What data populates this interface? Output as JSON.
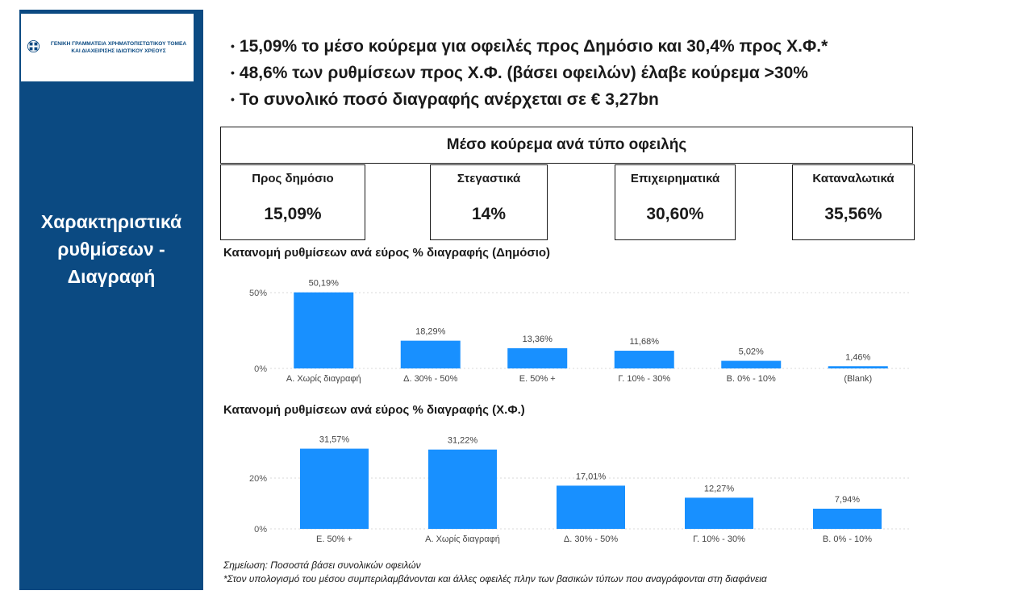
{
  "header": {
    "logo_line1": "ΓΕΝΙΚΗ ΓΡΑΜΜΑΤΕΙΑ ΧΡΗΜΑΤΟΠΙΣΤΩΤΙΚΟΥ ΤΟΜΕΑ",
    "logo_line2": "ΚΑΙ ΔΙΑΧΕΙΡΙΣΗΣ ΙΔΙΩΤΙΚΟΥ ΧΡΕΟΥΣ"
  },
  "sidebar": {
    "title": "Χαρακτηριστικά\nρυθμίσεων -\nΔιαγραφή"
  },
  "bullets": [
    "15,09% το μέσο κούρεμα για οφειλές προς Δημόσιο και 30,4% προς Χ.Φ.*",
    "48,6% των ρυθμίσεων προς Χ.Φ. (βάσει οφειλών) έλαβε κούρεμα >30%",
    "Το συνολικό ποσό διαγραφής ανέρχεται σε € 3,27bn"
  ],
  "kpi_header": "Μέσο κούρεμα ανά τύπο οφειλής",
  "kpis": [
    {
      "label": "Προς δημόσιο",
      "value": "15,09%"
    },
    {
      "label": "Στεγαστικά",
      "value": "14%"
    },
    {
      "label": "Επιχειρηματικά",
      "value": "30,60%"
    },
    {
      "label": "Καταναλωτικά",
      "value": "35,56%"
    }
  ],
  "chart_data": [
    {
      "type": "bar",
      "title": "Κατανομή ρυθμίσεων ανά εύρος % διαγραφής (Δημόσιο)",
      "categories": [
        "Α. Χωρίς διαγραφή",
        "Δ. 30% - 50%",
        "Ε. 50% +",
        "Γ. 10% - 30%",
        "Β. 0% - 10%",
        "(Blank)"
      ],
      "values": [
        50.19,
        18.29,
        13.36,
        11.68,
        5.02,
        1.46
      ],
      "data_labels": [
        "50,19%",
        "18,29%",
        "13,36%",
        "11,68%",
        "5,02%",
        "1,46%"
      ],
      "yticks": [
        0,
        50
      ],
      "ytick_labels": [
        "0%",
        "50%"
      ],
      "ylim": [
        0,
        50
      ],
      "grid": true,
      "color": "#1890ff"
    },
    {
      "type": "bar",
      "title": "Κατανομή ρυθμίσεων ανά εύρος % διαγραφής (Χ.Φ.)",
      "categories": [
        "Ε. 50% +",
        "Α. Χωρίς διαγραφή",
        "Δ. 30% - 50%",
        "Γ. 10% - 30%",
        "Β. 0% - 10%"
      ],
      "values": [
        31.57,
        31.22,
        17.01,
        12.27,
        7.94
      ],
      "data_labels": [
        "31,57%",
        "31,22%",
        "17,01%",
        "12,27%",
        "7,94%"
      ],
      "yticks": [
        0,
        20
      ],
      "ytick_labels": [
        "0%",
        "20%"
      ],
      "ylim": [
        0,
        20
      ],
      "grid": true,
      "color": "#1890ff"
    }
  ],
  "notes": [
    "Σημείωση: Ποσοστά βάσει συνολικών οφειλών",
    "*Στον υπολογισμό του μέσου συμπεριλαμβάνονται και άλλες οφειλές πλην των βασικών τύπων που αναγράφονται στη διαφάνεια"
  ]
}
